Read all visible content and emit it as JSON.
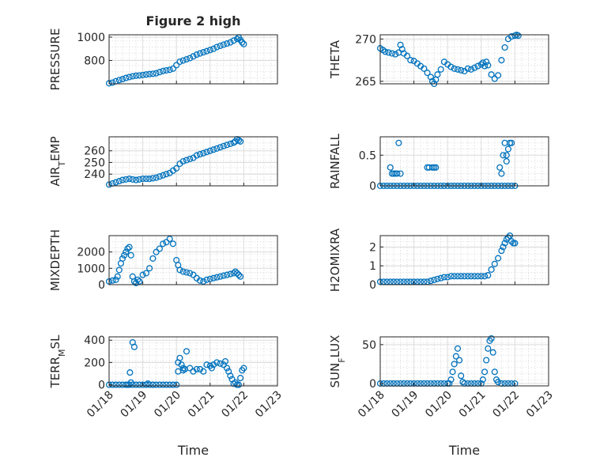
{
  "chart_data": [
    {
      "type": "scatter",
      "title": "Figure 2 high",
      "ylabel": "PRESSURE",
      "xlabel": "",
      "ylim": [
        600,
        1020
      ],
      "yticks": [
        1000,
        800
      ],
      "xlim": [
        "01/18",
        "01/23"
      ],
      "xticks": [
        "01/18",
        "01/19",
        "01/20",
        "01/21",
        "01/22",
        "01/23"
      ],
      "grid": true,
      "x": [
        0,
        0.1,
        0.2,
        0.3,
        0.4,
        0.5,
        0.6,
        0.7,
        0.8,
        0.9,
        1.0,
        1.1,
        1.2,
        1.3,
        1.4,
        1.5,
        1.6,
        1.7,
        1.8,
        1.9,
        2.0,
        2.1,
        2.2,
        2.3,
        2.4,
        2.5,
        2.6,
        2.7,
        2.8,
        2.9,
        3.0,
        3.1,
        3.2,
        3.3,
        3.4,
        3.5,
        3.6,
        3.7,
        3.8,
        3.85,
        3.9,
        3.95,
        4.0
      ],
      "y": [
        605,
        610,
        622,
        632,
        640,
        650,
        658,
        665,
        670,
        672,
        675,
        680,
        683,
        686,
        690,
        700,
        710,
        715,
        720,
        730,
        760,
        790,
        800,
        810,
        820,
        835,
        850,
        860,
        870,
        880,
        890,
        900,
        915,
        925,
        935,
        945,
        955,
        970,
        985,
        998,
        975,
        955,
        940
      ]
    },
    {
      "type": "scatter",
      "title": "",
      "ylabel": "THETA",
      "xlabel": "",
      "ylim": [
        264.7,
        270.5
      ],
      "yticks": [
        270,
        265
      ],
      "xlim": [
        "01/18",
        "01/23"
      ],
      "xticks": [
        "01/18",
        "01/19",
        "01/20",
        "01/21",
        "01/22",
        "01/23"
      ],
      "grid": true,
      "x": [
        0,
        0.08,
        0.15,
        0.25,
        0.35,
        0.45,
        0.55,
        0.6,
        0.65,
        0.7,
        0.8,
        0.9,
        1.0,
        1.1,
        1.2,
        1.3,
        1.4,
        1.5,
        1.55,
        1.6,
        1.65,
        1.7,
        1.8,
        1.9,
        2.0,
        2.1,
        2.2,
        2.3,
        2.4,
        2.5,
        2.6,
        2.7,
        2.8,
        2.9,
        3.0,
        3.05,
        3.1,
        3.15,
        3.2,
        3.3,
        3.4,
        3.5,
        3.6,
        3.7,
        3.8,
        3.9,
        4.0,
        4.05,
        4.1
      ],
      "y": [
        268.9,
        268.7,
        268.5,
        268.4,
        268.3,
        268.2,
        268.4,
        269.3,
        268.8,
        268.3,
        268.0,
        267.5,
        267.4,
        267.1,
        266.8,
        266.5,
        266.0,
        265.5,
        265.0,
        264.7,
        265.2,
        265.8,
        266.4,
        267.3,
        267.0,
        266.7,
        266.5,
        266.4,
        266.3,
        266.2,
        266.5,
        266.4,
        266.6,
        266.8,
        267.0,
        267.2,
        266.8,
        267.3,
        266.9,
        265.8,
        265.3,
        265.7,
        267.5,
        269.0,
        270.0,
        270.3,
        270.4,
        270.5,
        270.4
      ]
    },
    {
      "type": "scatter",
      "title": "",
      "ylabel": "AIR_TEMP",
      "xlabel": "",
      "ylim": [
        230,
        272
      ],
      "yticks": [
        260,
        250,
        240
      ],
      "xlim": [
        "01/18",
        "01/23"
      ],
      "xticks": [
        "01/18",
        "01/19",
        "01/20",
        "01/21",
        "01/22",
        "01/23"
      ],
      "grid": true,
      "x": [
        0,
        0.1,
        0.2,
        0.3,
        0.4,
        0.5,
        0.6,
        0.7,
        0.8,
        0.9,
        1.0,
        1.1,
        1.2,
        1.3,
        1.4,
        1.5,
        1.6,
        1.7,
        1.8,
        1.9,
        2.0,
        2.1,
        2.2,
        2.3,
        2.4,
        2.5,
        2.6,
        2.7,
        2.8,
        2.9,
        3.0,
        3.1,
        3.2,
        3.3,
        3.4,
        3.5,
        3.6,
        3.7,
        3.75,
        3.8,
        3.85,
        3.9
      ],
      "y": [
        231,
        232,
        233,
        234,
        235,
        235.5,
        236,
        235.5,
        235,
        235.5,
        236,
        236,
        236,
        236.5,
        237,
        238,
        239,
        240,
        241,
        243,
        245,
        249,
        251,
        252,
        253,
        254,
        256,
        257,
        258,
        259,
        260,
        261,
        262,
        263,
        264,
        265,
        266,
        267,
        268,
        270,
        269,
        268
      ]
    },
    {
      "type": "scatter",
      "title": "",
      "ylabel": "RAINFALL",
      "xlabel": "",
      "ylim": [
        0,
        0.8
      ],
      "yticks": [
        0.5,
        0
      ],
      "xlim": [
        "01/18",
        "01/23"
      ],
      "xticks": [
        "01/18",
        "01/19",
        "01/20",
        "01/21",
        "01/22",
        "01/23"
      ],
      "grid": true,
      "x": [
        0.0,
        0.1,
        0.2,
        0.3,
        0.4,
        0.5,
        0.6,
        0.7,
        0.8,
        0.9,
        1.0,
        1.1,
        1.2,
        1.3,
        1.4,
        1.5,
        1.6,
        1.7,
        1.8,
        1.9,
        2.0,
        2.1,
        2.2,
        2.3,
        2.4,
        2.5,
        2.6,
        2.7,
        2.8,
        2.9,
        3.0,
        3.1,
        3.2,
        3.3,
        3.4,
        3.5,
        3.6,
        3.7,
        3.8,
        3.9,
        4.0,
        0.3,
        0.35,
        0.4,
        0.45,
        0.5,
        0.55,
        0.6,
        1.4,
        1.45,
        1.55,
        1.6,
        1.65,
        3.55,
        3.6,
        3.65,
        3.7,
        3.75,
        3.75,
        3.8,
        3.85,
        3.9
      ],
      "y": [
        0,
        0,
        0,
        0,
        0,
        0,
        0,
        0,
        0,
        0,
        0,
        0,
        0,
        0,
        0,
        0,
        0,
        0,
        0,
        0,
        0,
        0,
        0,
        0,
        0,
        0,
        0,
        0,
        0,
        0,
        0,
        0,
        0,
        0,
        0,
        0,
        0,
        0,
        0,
        0,
        0,
        0.3,
        0.2,
        0.2,
        0.2,
        0.2,
        0.7,
        0.2,
        0.3,
        0.3,
        0.3,
        0.3,
        0.3,
        0.3,
        0.2,
        0.5,
        0.7,
        0.5,
        0.4,
        0.6,
        0.7,
        0.7
      ]
    },
    {
      "type": "scatter",
      "title": "",
      "ylabel": "MIXDEPTH",
      "xlabel": "",
      "ylim": [
        0,
        3000
      ],
      "yticks": [
        2000,
        1000,
        0
      ],
      "xlim": [
        "01/18",
        "01/23"
      ],
      "xticks": [
        "01/18",
        "01/19",
        "01/20",
        "01/21",
        "01/22",
        "01/23"
      ],
      "grid": true,
      "x": [
        0,
        0.1,
        0.2,
        0.25,
        0.3,
        0.35,
        0.4,
        0.45,
        0.5,
        0.55,
        0.6,
        0.65,
        0.7,
        0.75,
        0.8,
        0.85,
        0.9,
        1.0,
        1.1,
        1.2,
        1.3,
        1.4,
        1.5,
        1.6,
        1.7,
        1.8,
        1.9,
        2.0,
        2.05,
        2.1,
        2.2,
        2.3,
        2.4,
        2.5,
        2.6,
        2.7,
        2.8,
        2.9,
        3.0,
        3.1,
        3.2,
        3.3,
        3.4,
        3.5,
        3.6,
        3.7,
        3.75,
        3.8,
        3.85,
        3.9
      ],
      "y": [
        200,
        250,
        300,
        500,
        900,
        1300,
        1600,
        1800,
        2000,
        2200,
        2300,
        1800,
        500,
        200,
        100,
        300,
        200,
        600,
        700,
        1000,
        1600,
        2000,
        2200,
        2500,
        2600,
        2800,
        2500,
        1500,
        1200,
        900,
        800,
        750,
        700,
        600,
        400,
        250,
        200,
        300,
        350,
        400,
        450,
        500,
        550,
        600,
        650,
        700,
        800,
        700,
        600,
        500
      ]
    },
    {
      "type": "scatter",
      "title": "",
      "ylabel": "H2OMIXRA",
      "xlabel": "",
      "ylim": [
        0,
        2.6
      ],
      "yticks": [
        2,
        1,
        0
      ],
      "xlim": [
        "01/18",
        "01/23"
      ],
      "xticks": [
        "01/18",
        "01/19",
        "01/20",
        "01/21",
        "01/22",
        "01/23"
      ],
      "grid": true,
      "x": [
        0,
        0.1,
        0.2,
        0.3,
        0.4,
        0.5,
        0.6,
        0.7,
        0.8,
        0.9,
        1.0,
        1.1,
        1.2,
        1.3,
        1.4,
        1.5,
        1.6,
        1.7,
        1.8,
        1.9,
        2.0,
        2.1,
        2.2,
        2.3,
        2.4,
        2.5,
        2.6,
        2.7,
        2.8,
        2.9,
        3.0,
        3.1,
        3.2,
        3.3,
        3.4,
        3.5,
        3.6,
        3.65,
        3.7,
        3.75,
        3.8,
        3.85,
        3.9,
        3.95,
        4.0
      ],
      "y": [
        0.15,
        0.15,
        0.15,
        0.15,
        0.15,
        0.15,
        0.15,
        0.15,
        0.15,
        0.15,
        0.15,
        0.15,
        0.15,
        0.15,
        0.15,
        0.2,
        0.25,
        0.3,
        0.35,
        0.4,
        0.4,
        0.45,
        0.45,
        0.45,
        0.45,
        0.45,
        0.45,
        0.45,
        0.45,
        0.45,
        0.45,
        0.45,
        0.5,
        0.8,
        1.1,
        1.4,
        1.8,
        2.0,
        2.2,
        2.4,
        2.5,
        2.6,
        2.3,
        2.2,
        2.2
      ]
    },
    {
      "type": "scatter",
      "title": "",
      "ylabel": "TERR_MSL",
      "xlabel": "Time",
      "ylim": [
        -10,
        430
      ],
      "yticks": [
        400,
        200,
        0
      ],
      "xlim": [
        "01/18",
        "01/23"
      ],
      "xticks": [
        "01/18",
        "01/19",
        "01/20",
        "01/21",
        "01/22",
        "01/23"
      ],
      "grid": true,
      "x": [
        0,
        0.1,
        0.2,
        0.3,
        0.4,
        0.5,
        0.6,
        0.65,
        0.7,
        0.75,
        0.8,
        0.9,
        1.0,
        1.1,
        1.2,
        1.3,
        1.4,
        1.5,
        1.6,
        1.7,
        1.8,
        1.9,
        2.0,
        2.05,
        2.1,
        2.15,
        2.2,
        2.25,
        2.3,
        2.4,
        2.5,
        2.6,
        2.7,
        2.8,
        2.9,
        3.0,
        3.1,
        3.2,
        3.3,
        3.4,
        3.5,
        3.55,
        3.6,
        3.65,
        3.7,
        3.75,
        3.8,
        3.85,
        3.9,
        3.95,
        4.0,
        0.55,
        0.62,
        0.7,
        1.15,
        1.3,
        2.05,
        2.2,
        3.05,
        3.45
      ],
      "y": [
        0,
        0,
        0,
        0,
        0,
        0,
        0,
        20,
        380,
        340,
        0,
        0,
        0,
        0,
        0,
        0,
        0,
        0,
        0,
        0,
        0,
        0,
        0,
        120,
        240,
        180,
        150,
        140,
        300,
        150,
        120,
        140,
        140,
        120,
        180,
        170,
        180,
        200,
        190,
        180,
        150,
        120,
        80,
        50,
        10,
        20,
        0,
        0,
        60,
        130,
        150,
        0,
        110,
        0,
        10,
        0,
        200,
        130,
        150,
        210
      ]
    },
    {
      "type": "scatter",
      "title": "",
      "ylabel": "SUN_FLUX",
      "xlabel": "Time",
      "ylim": [
        -3,
        60
      ],
      "yticks": [
        50,
        0
      ],
      "xlim": [
        "01/18",
        "01/23"
      ],
      "xticks": [
        "01/18",
        "01/19",
        "01/20",
        "01/21",
        "01/22",
        "01/23"
      ],
      "grid": true,
      "x": [
        0,
        0.1,
        0.2,
        0.3,
        0.4,
        0.5,
        0.6,
        0.7,
        0.8,
        0.9,
        1.0,
        1.1,
        1.2,
        1.3,
        1.4,
        1.5,
        1.6,
        1.7,
        1.8,
        1.9,
        2.0,
        2.05,
        2.1,
        2.15,
        2.2,
        2.25,
        2.3,
        2.35,
        2.4,
        2.45,
        2.5,
        2.6,
        2.7,
        2.8,
        2.9,
        3.0,
        3.05,
        3.1,
        3.15,
        3.2,
        3.25,
        3.3,
        3.35,
        3.4,
        3.45,
        3.5,
        3.6,
        3.7,
        3.8,
        3.9,
        4.0
      ],
      "y": [
        0,
        0,
        0,
        0,
        0,
        0,
        0,
        0,
        0,
        0,
        0,
        0,
        0,
        0,
        0,
        0,
        0,
        0,
        0,
        0,
        0,
        0,
        5,
        15,
        25,
        35,
        45,
        30,
        10,
        2,
        0,
        0,
        0,
        0,
        0,
        0,
        5,
        15,
        30,
        45,
        55,
        58,
        40,
        15,
        5,
        2,
        0,
        0,
        0,
        0,
        0
      ]
    }
  ]
}
